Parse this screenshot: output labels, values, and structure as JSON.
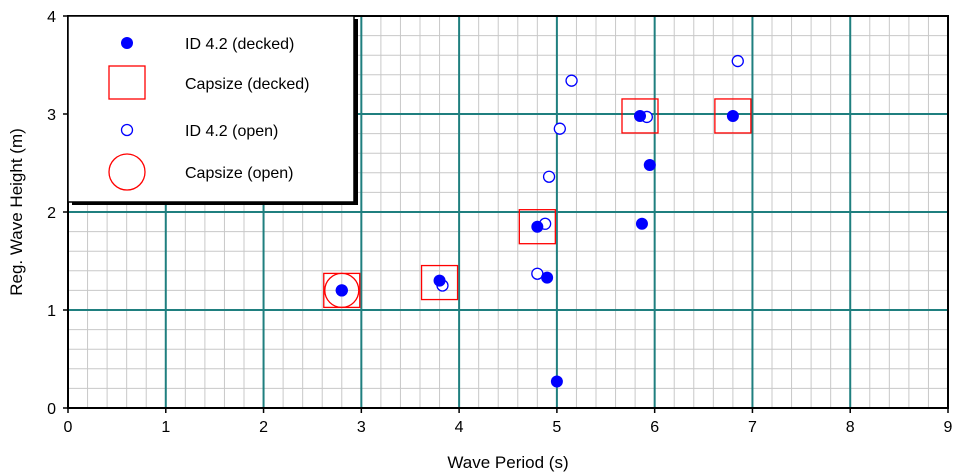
{
  "chart_data": {
    "type": "scatter",
    "title": "",
    "xlabel": "Wave Period (s)",
    "ylabel": "Reg. Wave Height (m)",
    "xlim": [
      0,
      9
    ],
    "ylim": [
      0,
      4
    ],
    "x_ticks": [
      "0",
      "1",
      "2",
      "3",
      "4",
      "5",
      "6",
      "7",
      "8",
      "9"
    ],
    "y_ticks": [
      "0",
      "1",
      "2",
      "3",
      "4"
    ],
    "major_grid_color": "#1f7f7f",
    "minor_grid_color": "#c8c8c8",
    "minor_divisions": 5,
    "legend_position": "top-left",
    "series": [
      {
        "name": "ID 4.2 (decked)",
        "marker": "filled-circle",
        "color": "#0000ff",
        "points": [
          {
            "x": 2.8,
            "y": 1.2
          },
          {
            "x": 3.8,
            "y": 1.3
          },
          {
            "x": 4.8,
            "y": 1.85
          },
          {
            "x": 4.9,
            "y": 1.33
          },
          {
            "x": 5.0,
            "y": 0.27
          },
          {
            "x": 5.85,
            "y": 2.98
          },
          {
            "x": 5.87,
            "y": 1.88
          },
          {
            "x": 5.95,
            "y": 2.48
          },
          {
            "x": 6.8,
            "y": 2.98
          }
        ]
      },
      {
        "name": "Capsize (decked)",
        "marker": "open-square",
        "color": "#ff0000",
        "points": [
          {
            "x": 2.8,
            "y": 1.2
          },
          {
            "x": 3.8,
            "y": 1.28
          },
          {
            "x": 4.8,
            "y": 1.85
          },
          {
            "x": 5.85,
            "y": 2.98
          },
          {
            "x": 6.8,
            "y": 2.98
          }
        ]
      },
      {
        "name": "ID 4.2 (open)",
        "marker": "open-circle",
        "color": "#0000ff",
        "points": [
          {
            "x": 2.8,
            "y": 1.2
          },
          {
            "x": 3.83,
            "y": 1.25
          },
          {
            "x": 4.8,
            "y": 1.37
          },
          {
            "x": 4.88,
            "y": 1.88
          },
          {
            "x": 4.92,
            "y": 2.36
          },
          {
            "x": 5.03,
            "y": 2.85
          },
          {
            "x": 5.15,
            "y": 3.34
          },
          {
            "x": 5.92,
            "y": 2.97
          },
          {
            "x": 6.85,
            "y": 3.54
          }
        ]
      },
      {
        "name": "Capsize (open)",
        "marker": "large-open-circle",
        "color": "#ff0000",
        "points": [
          {
            "x": 2.8,
            "y": 1.2
          }
        ]
      }
    ]
  }
}
